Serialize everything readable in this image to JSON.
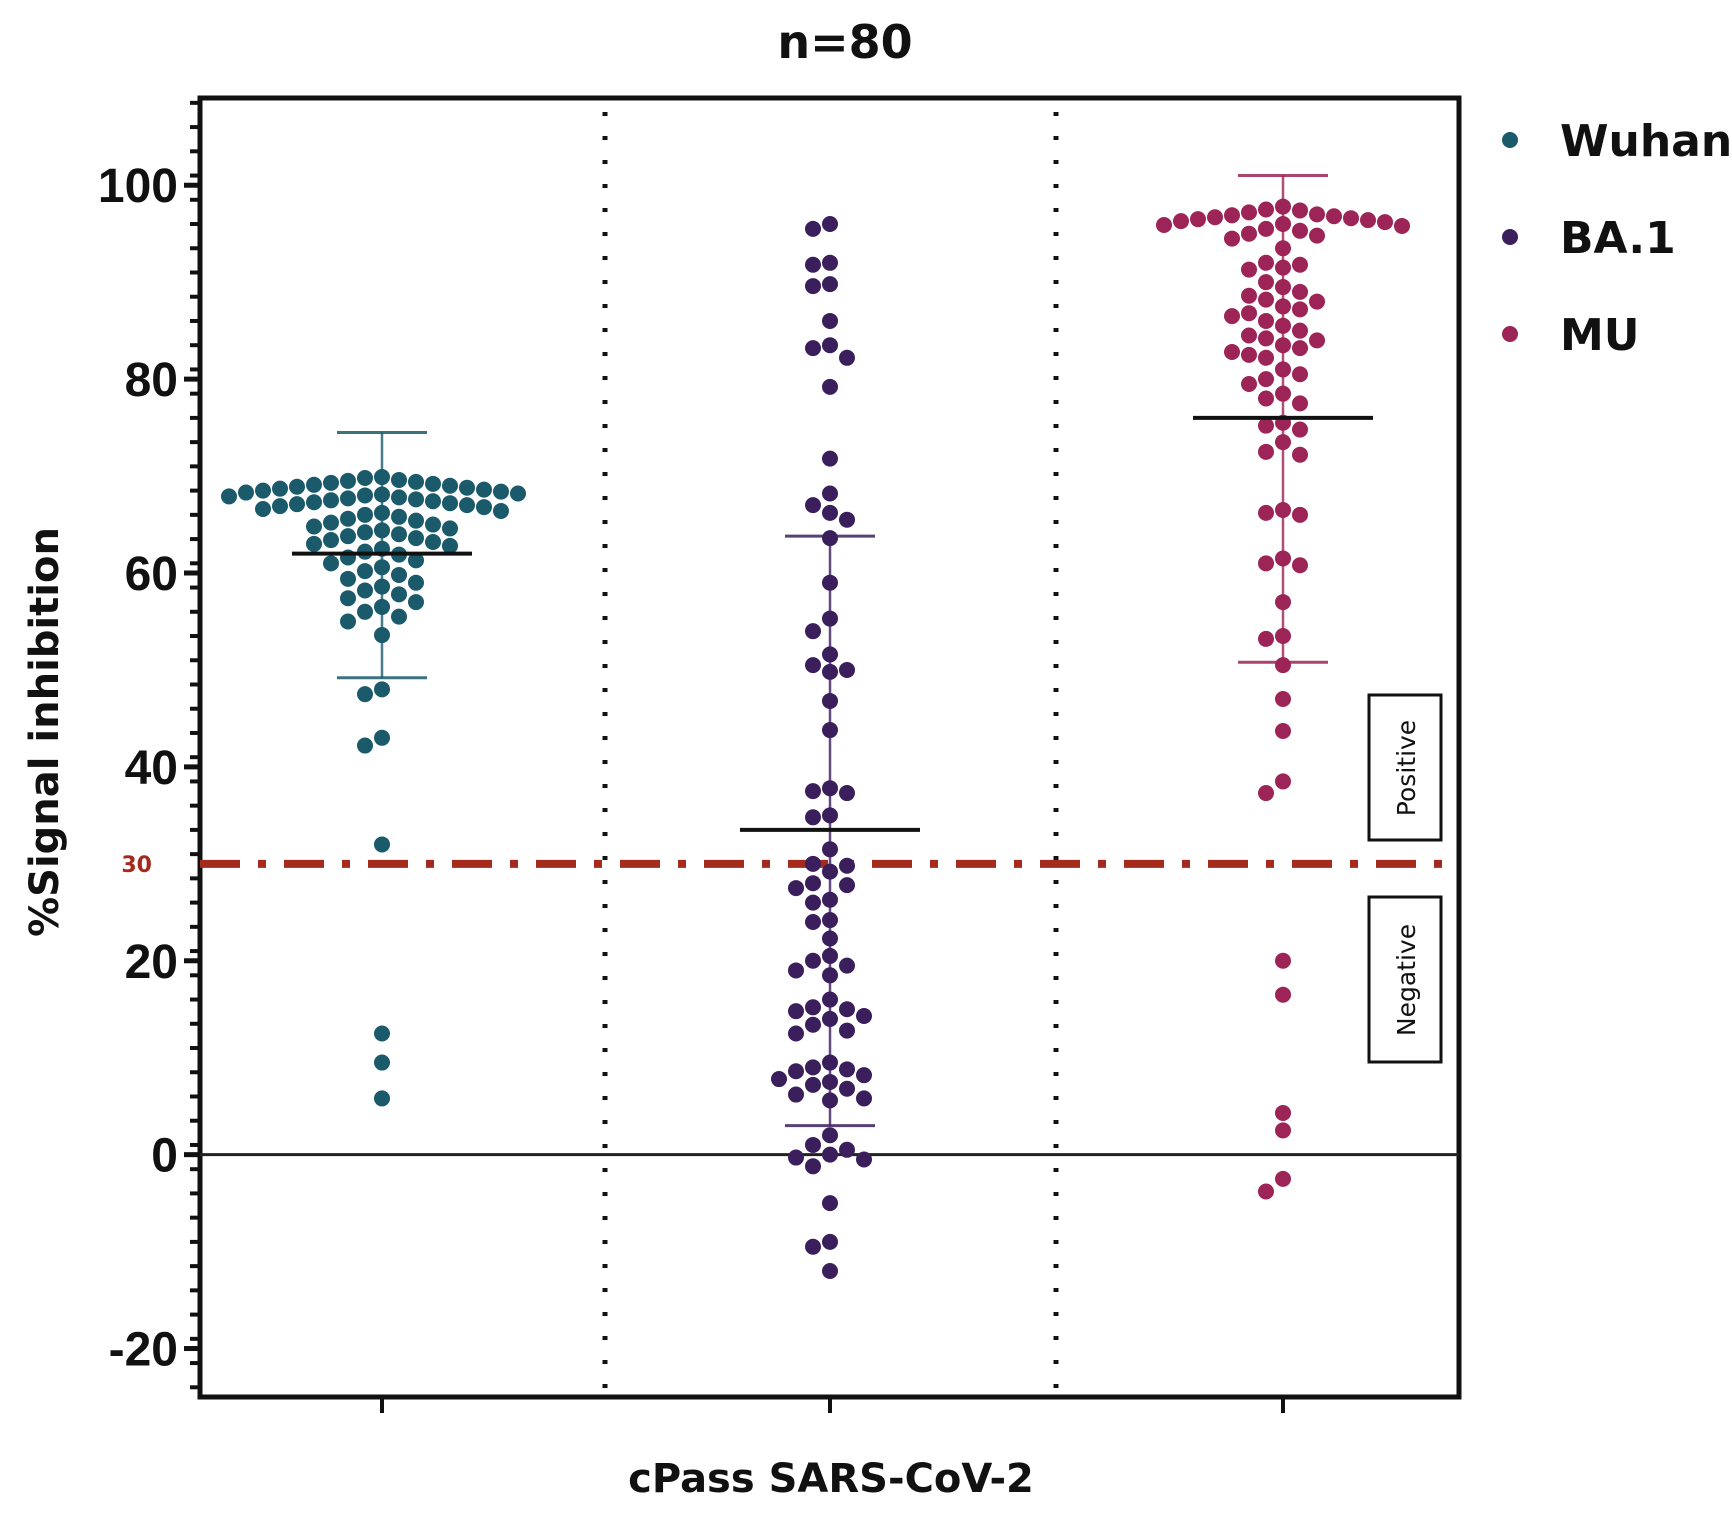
{
  "chart_data": {
    "type": "scatter",
    "title": "n=80",
    "xlabel": "cPass SARS-CoV-2",
    "ylabel": "%Signal inhibition",
    "ylim": [
      -25,
      109
    ],
    "yticks": [
      -20,
      0,
      20,
      40,
      60,
      80,
      100
    ],
    "ytick_labels": [
      "-20",
      "0",
      "20",
      "40",
      "60",
      "80",
      "100"
    ],
    "threshold": {
      "value": 30,
      "label": "30",
      "color": "#a52a1e"
    },
    "zero_line": 0,
    "annotations": [
      {
        "text": "Positive",
        "region": "above-threshold"
      },
      {
        "text": "Negative",
        "region": "below-threshold"
      }
    ],
    "legend": {
      "placement": "top-right",
      "entries": [
        {
          "label": "Wuhan",
          "color": "#1b5a6b"
        },
        {
          "label": "BA.1",
          "color": "#3b1f5c"
        },
        {
          "label": "MU",
          "color": "#9c2457"
        }
      ]
    },
    "grid": false,
    "series": [
      {
        "name": "Wuhan",
        "color": "#1b5a6b",
        "mean": 62,
        "sd_upper": 74.5,
        "sd_lower": 49.2,
        "values": [
          69.8,
          69.6,
          69.5,
          69.4,
          69.3,
          69.2,
          69.1,
          69.0,
          68.9,
          68.8,
          68.7,
          68.6,
          68.5,
          68.4,
          68.3,
          68.2,
          68.1,
          68.0,
          67.9,
          67.8,
          67.7,
          67.6,
          67.5,
          67.4,
          67.3,
          67.2,
          67.1,
          67.0,
          66.9,
          66.8,
          66.6,
          66.4,
          66.2,
          66.0,
          65.8,
          65.6,
          65.4,
          65.2,
          65.0,
          64.8,
          64.6,
          64.4,
          64.2,
          64.0,
          63.8,
          63.6,
          63.4,
          63.2,
          63.0,
          62.8,
          62.5,
          62.2,
          61.9,
          61.6,
          61.3,
          61.0,
          60.6,
          60.2,
          59.8,
          59.4,
          59.0,
          58.6,
          58.2,
          57.8,
          57.4,
          57.0,
          56.5,
          56.0,
          55.5,
          55.0,
          53.6,
          48.0,
          47.5,
          43.0,
          42.2,
          32.0,
          12.5,
          9.5,
          5.8,
          69.9
        ]
      },
      {
        "name": "BA.1",
        "color": "#3b1f5c",
        "mean": 33.5,
        "sd_upper": 63.8,
        "sd_lower": 3.0,
        "values": [
          96.0,
          95.5,
          92.0,
          91.8,
          89.8,
          89.6,
          86.0,
          83.5,
          83.2,
          82.2,
          79.2,
          71.8,
          68.2,
          67.0,
          66.2,
          65.5,
          63.6,
          59.0,
          55.3,
          54.0,
          51.6,
          50.5,
          50.0,
          49.8,
          46.8,
          43.8,
          37.8,
          37.5,
          37.3,
          35.0,
          34.8,
          31.5,
          30.0,
          29.8,
          29.2,
          28.0,
          27.8,
          27.5,
          26.3,
          26.0,
          24.2,
          24.0,
          22.3,
          20.5,
          20.0,
          19.5,
          19.0,
          18.5,
          16.0,
          15.2,
          15.0,
          14.8,
          14.3,
          14.0,
          13.4,
          12.8,
          12.5,
          9.5,
          9.0,
          8.8,
          8.6,
          8.2,
          7.8,
          7.5,
          7.2,
          6.8,
          6.2,
          5.8,
          5.6,
          2.0,
          1.0,
          0.5,
          0.0,
          -0.3,
          -0.5,
          -1.2,
          -5.0,
          -9.0,
          -9.5,
          -12.0
        ]
      },
      {
        "name": "MU",
        "color": "#9c2457",
        "mean": 76,
        "sd_upper": 101,
        "sd_lower": 50.8,
        "values": [
          97.8,
          97.5,
          97.2,
          97.0,
          96.9,
          96.8,
          96.7,
          96.6,
          96.5,
          96.4,
          96.2,
          96.0,
          95.8,
          95.5,
          95.3,
          95.0,
          94.8,
          94.5,
          92.0,
          91.8,
          91.5,
          91.3,
          90.0,
          89.5,
          88.2,
          88.0,
          87.5,
          87.2,
          86.8,
          86.5,
          86.0,
          85.0,
          84.5,
          84.0,
          83.5,
          83.2,
          82.8,
          82.5,
          82.2,
          81.0,
          80.5,
          80.0,
          79.5,
          78.5,
          78.0,
          77.5,
          75.5,
          75.2,
          74.8,
          73.5,
          72.5,
          72.2,
          66.5,
          66.2,
          66.0,
          61.5,
          61.0,
          60.8,
          57.0,
          53.5,
          53.2,
          50.5,
          47.0,
          43.7,
          38.5,
          37.3,
          20.0,
          16.5,
          4.3,
          2.5,
          -2.5,
          -3.8,
          85.5,
          89.0,
          93.5,
          96.3,
          95.9,
          97.4,
          84.2,
          88.6
        ]
      }
    ]
  }
}
